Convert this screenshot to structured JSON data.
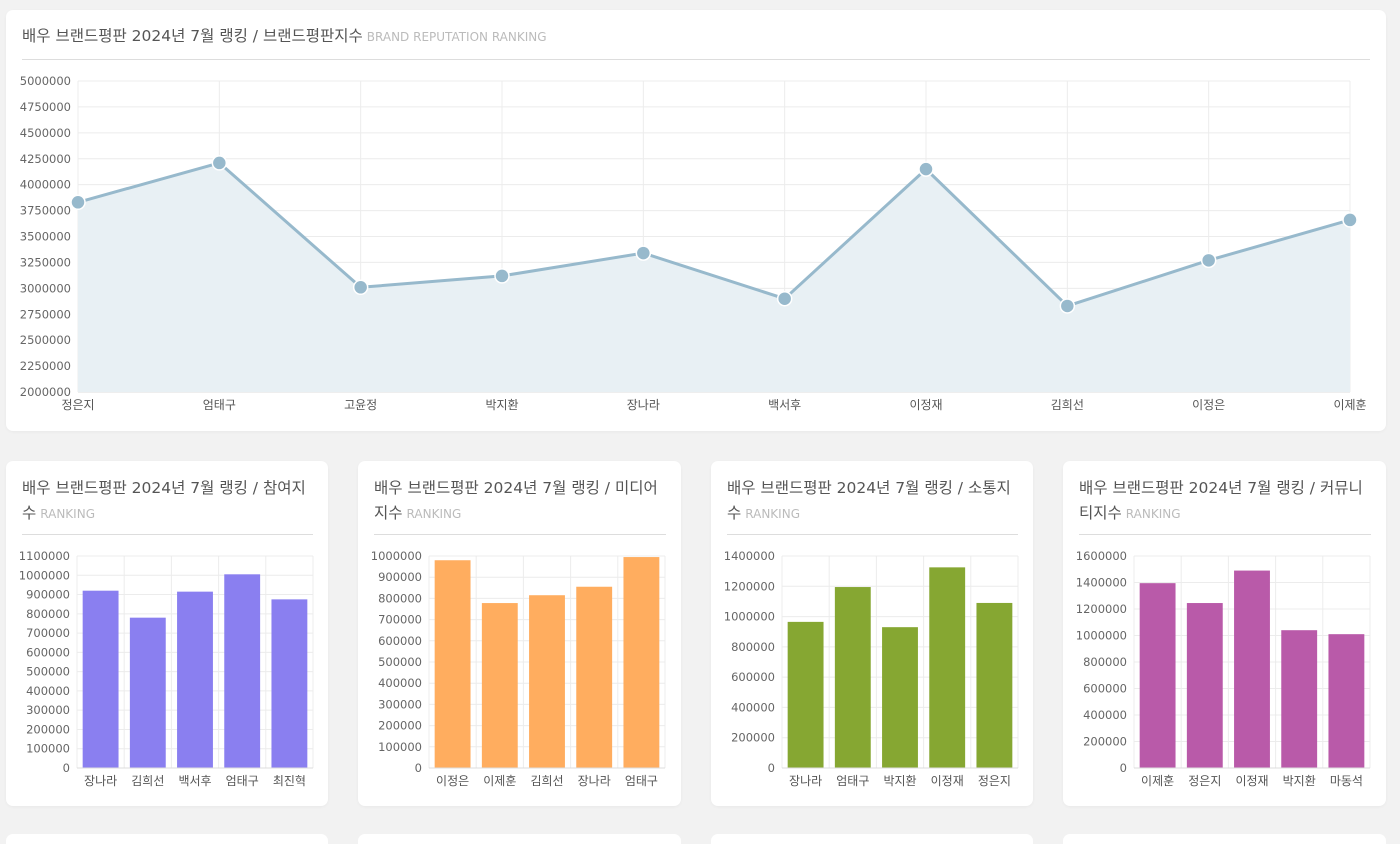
{
  "chart_data": [
    {
      "id": "main",
      "type": "area",
      "title": "배우 브랜드평판 2024년 7월 랭킹 / 브랜드평판지수",
      "subtitle": "BRAND REPUTATION RANKING",
      "categories": [
        "정은지",
        "엄태구",
        "고윤정",
        "박지환",
        "장나라",
        "백서후",
        "이정재",
        "김희선",
        "이정은",
        "이제훈"
      ],
      "values": [
        3830000,
        4210000,
        3010000,
        3120000,
        3340000,
        2900000,
        4150000,
        2830000,
        3270000,
        3660000
      ],
      "ylim": [
        2000000,
        5000000
      ],
      "yticks": [
        2000000,
        2250000,
        2500000,
        2750000,
        3000000,
        3250000,
        3500000,
        3750000,
        4000000,
        4250000,
        4500000,
        4750000,
        5000000
      ],
      "grid": true,
      "color": "#97b9cc",
      "fill": "#e8f0f4"
    },
    {
      "id": "c1",
      "type": "bar",
      "title": "배우 브랜드평판 2024년 7월 랭킹 / 참여지수",
      "subtitle": "RANKING",
      "categories": [
        "장나라",
        "김희선",
        "백서후",
        "엄태구",
        "최진혁"
      ],
      "values": [
        920000,
        780000,
        915000,
        1005000,
        875000
      ],
      "ylim": [
        0,
        1100000
      ],
      "yticks": [
        0,
        100000,
        200000,
        300000,
        400000,
        500000,
        600000,
        700000,
        800000,
        900000,
        1000000,
        1100000
      ],
      "grid": true,
      "color": "#8a7ff0"
    },
    {
      "id": "c2",
      "type": "bar",
      "title": "배우 브랜드평판 2024년 7월 랭킹 / 미디어지수",
      "subtitle": "RANKING",
      "categories": [
        "이정은",
        "이제훈",
        "김희선",
        "장나라",
        "엄태구"
      ],
      "values": [
        980000,
        778000,
        815000,
        855000,
        995000
      ],
      "ylim": [
        0,
        1000000
      ],
      "yticks": [
        0,
        100000,
        200000,
        300000,
        400000,
        500000,
        600000,
        700000,
        800000,
        900000,
        1000000
      ],
      "grid": true,
      "color": "#ffad5f"
    },
    {
      "id": "c3",
      "type": "bar",
      "title": "배우 브랜드평판 2024년 7월 랭킹 / 소통지수",
      "subtitle": "RANKING",
      "categories": [
        "장나라",
        "엄태구",
        "박지환",
        "이정재",
        "정은지"
      ],
      "values": [
        965000,
        1195000,
        930000,
        1325000,
        1090000
      ],
      "ylim": [
        0,
        1400000
      ],
      "yticks": [
        0,
        200000,
        400000,
        600000,
        800000,
        1000000,
        1200000,
        1400000
      ],
      "grid": true,
      "color": "#86a732"
    },
    {
      "id": "c4",
      "type": "bar",
      "title": "배우 브랜드평판 2024년 7월 랭킹 / 커뮤니티지수",
      "subtitle": "RANKING",
      "categories": [
        "이제훈",
        "정은지",
        "이정재",
        "박지환",
        "마동석"
      ],
      "values": [
        1395000,
        1245000,
        1490000,
        1040000,
        1010000
      ],
      "ylim": [
        0,
        1600000
      ],
      "yticks": [
        0,
        200000,
        400000,
        600000,
        800000,
        1000000,
        1200000,
        1400000,
        1600000
      ],
      "grid": true,
      "color": "#b95aa9"
    }
  ]
}
